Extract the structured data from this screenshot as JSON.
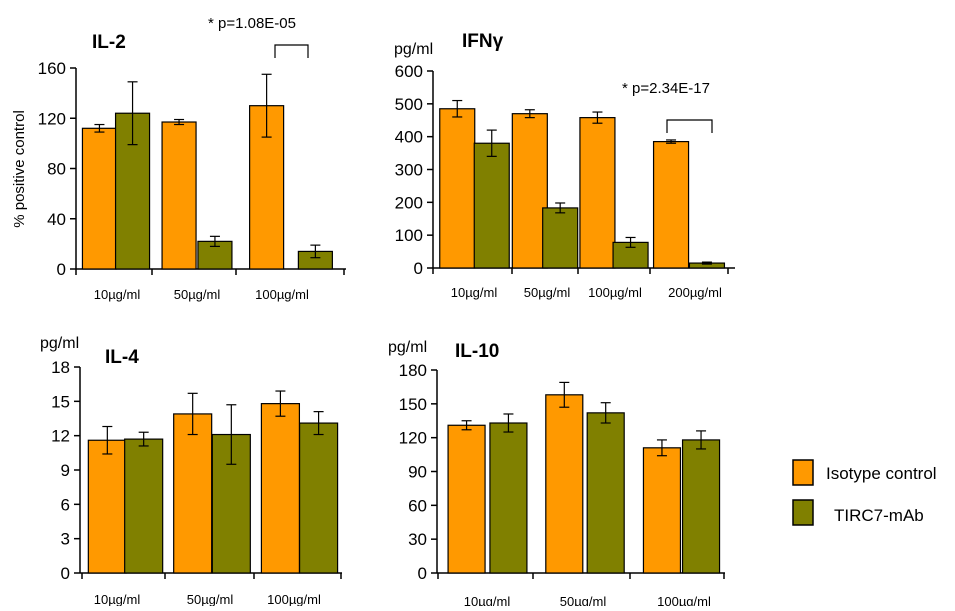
{
  "colors": {
    "isotype": "#FF9900",
    "tirc7": "#808000"
  },
  "legend": {
    "items": [
      {
        "label": "Isotype control",
        "color": "#FF9900"
      },
      {
        "label": "TIRC7-mAb",
        "color": "#808000"
      }
    ]
  },
  "chart_data": [
    {
      "type": "bar",
      "title": "IL-2",
      "unit": "",
      "ylabel": "% positive control",
      "ylim": [
        0,
        160
      ],
      "yticks": [
        0,
        40,
        80,
        120,
        160
      ],
      "categories": [
        "10µg/ml",
        "50µg/ml",
        "100µg/ml"
      ],
      "series": [
        {
          "name": "Isotype control",
          "values": [
            112,
            117,
            130
          ],
          "errors": [
            3,
            2,
            25
          ]
        },
        {
          "name": "TIRC7-mAb",
          "values": [
            124,
            22,
            14
          ],
          "errors": [
            25,
            4,
            5
          ]
        }
      ],
      "annotation": {
        "text": "* p=1.08E-05",
        "category_index": 2
      }
    },
    {
      "type": "bar",
      "title": "IFNγ",
      "unit": "pg/ml",
      "ylabel": "",
      "ylim": [
        0,
        600
      ],
      "yticks": [
        0,
        100,
        200,
        300,
        400,
        500,
        600
      ],
      "categories": [
        "10µg/ml",
        "50µg/ml",
        "100µg/ml",
        "200µg/ml"
      ],
      "series": [
        {
          "name": "Isotype control",
          "values": [
            485,
            470,
            458,
            385
          ],
          "errors": [
            25,
            12,
            17,
            5
          ]
        },
        {
          "name": "TIRC7-mAb",
          "values": [
            380,
            183,
            78,
            15
          ],
          "errors": [
            40,
            15,
            15,
            3
          ]
        }
      ],
      "annotation": {
        "text": "* p=2.34E-17",
        "category_index": 3
      }
    },
    {
      "type": "bar",
      "title": "IL-4",
      "unit": "pg/ml",
      "ylabel": "",
      "ylim": [
        0,
        18
      ],
      "yticks": [
        0,
        3,
        6,
        9,
        12,
        15,
        18
      ],
      "categories": [
        "10µg/ml",
        "50µg/ml",
        "100µg/ml"
      ],
      "series": [
        {
          "name": "Isotype control",
          "values": [
            11.6,
            13.9,
            14.8
          ],
          "errors": [
            1.2,
            1.8,
            1.1
          ]
        },
        {
          "name": "TIRC7-mAb",
          "values": [
            11.7,
            12.1,
            13.1
          ],
          "errors": [
            0.6,
            2.6,
            1.0
          ]
        }
      ]
    },
    {
      "type": "bar",
      "title": "IL-10",
      "unit": "pg/ml",
      "ylabel": "",
      "ylim": [
        0,
        180
      ],
      "yticks": [
        0,
        30,
        60,
        90,
        120,
        150,
        180
      ],
      "categories": [
        "10µg/ml",
        "50µg/ml",
        "100µg/ml"
      ],
      "series": [
        {
          "name": "Isotype control",
          "values": [
            131,
            158,
            111
          ],
          "errors": [
            4,
            11,
            7
          ]
        },
        {
          "name": "TIRC7-mAb",
          "values": [
            133,
            142,
            118
          ],
          "errors": [
            8,
            9,
            8
          ]
        }
      ]
    }
  ]
}
